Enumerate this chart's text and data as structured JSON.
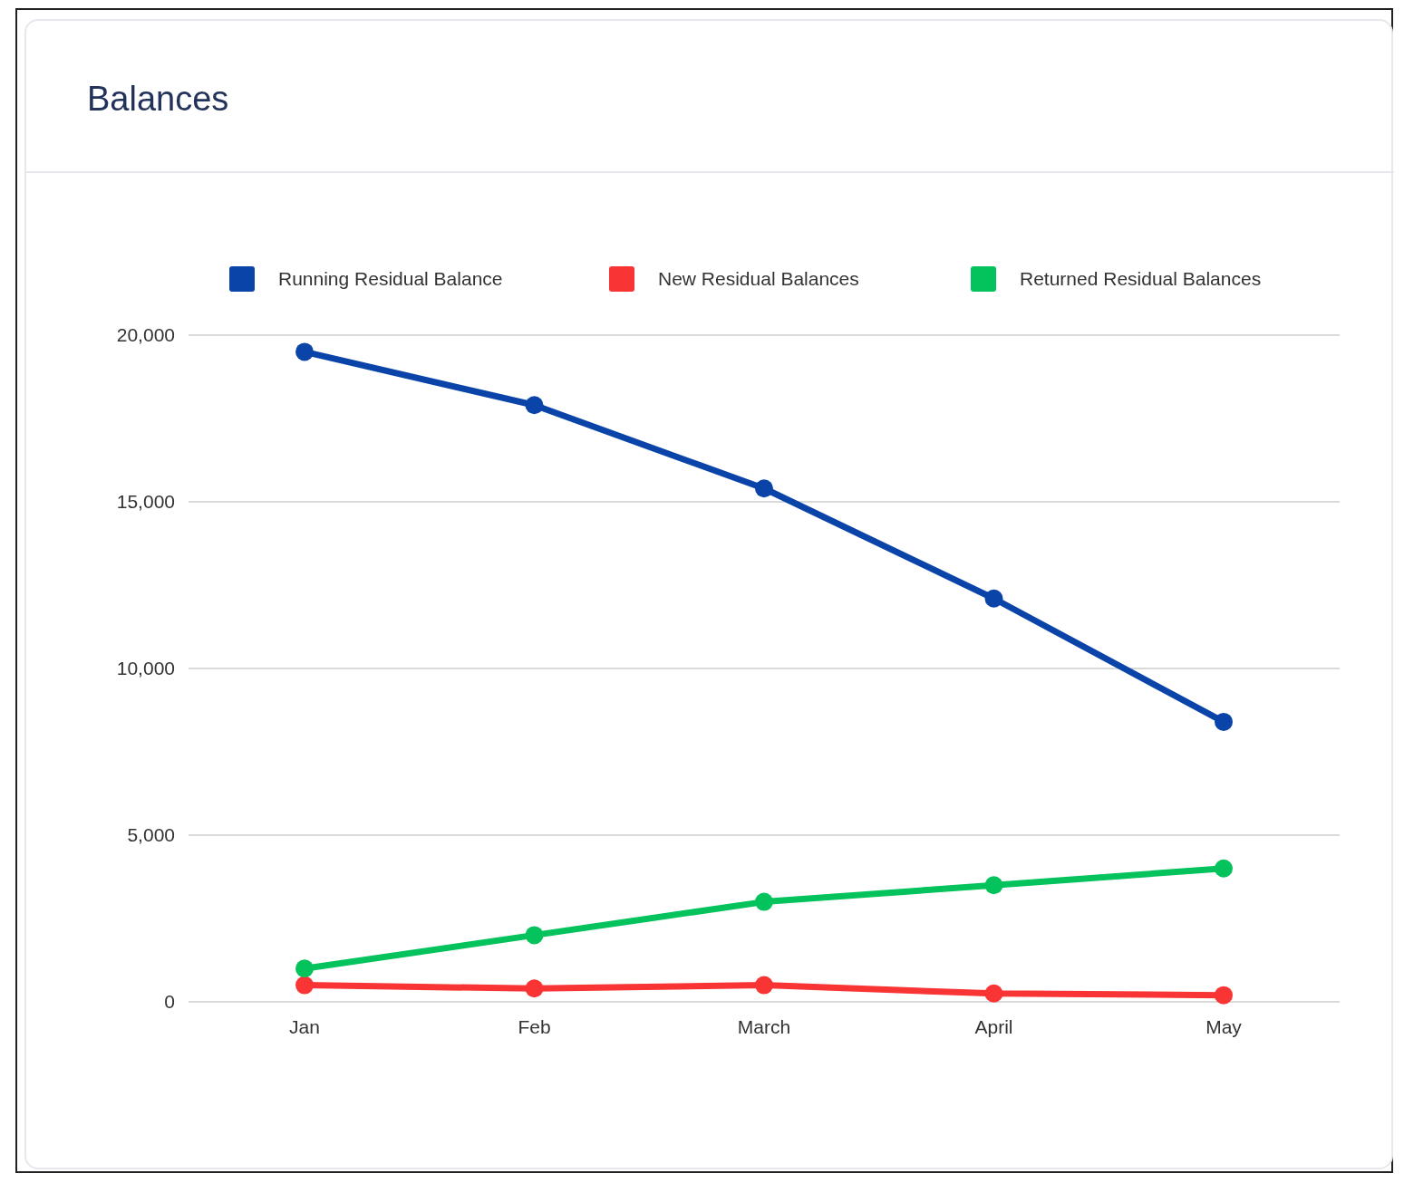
{
  "chart_data": {
    "type": "line",
    "title": "Balances",
    "categories": [
      "Jan",
      "Feb",
      "March",
      "April",
      "May"
    ],
    "series": [
      {
        "name": "Running Residual Balance",
        "color": "#0a44a8",
        "values": [
          19500,
          17900,
          15400,
          12100,
          8400
        ]
      },
      {
        "name": "New Residual Balances",
        "color": "#f93434",
        "values": [
          500,
          400,
          500,
          250,
          200
        ]
      },
      {
        "name": "Returned Residual Balances",
        "color": "#05c35c",
        "values": [
          1000,
          2000,
          3000,
          3500,
          4000
        ]
      }
    ],
    "ylim": [
      0,
      20000
    ],
    "yticks": [
      0,
      {
        "value": 5000,
        "label": "5,000"
      },
      {
        "value": 10000,
        "label": "10,000"
      },
      {
        "value": 15000,
        "label": "15,000"
      },
      {
        "value": 20000,
        "label": "20,000"
      }
    ],
    "grid": "y",
    "legend": "top",
    "marker": "circle",
    "line_style": "solid"
  }
}
